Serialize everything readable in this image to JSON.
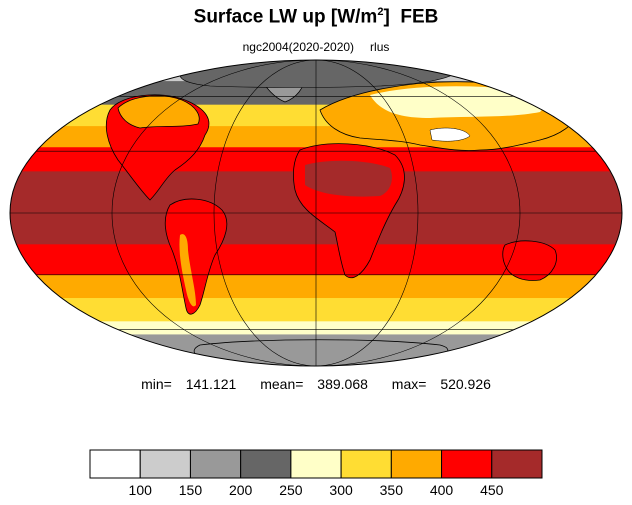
{
  "title": {
    "main": "Surface LW up [W/m",
    "superscript": "2",
    "close": "]",
    "month": "FEB"
  },
  "subtitle": {
    "case": "ngc2004(2020-2020)",
    "variable": "rlus"
  },
  "stats": {
    "min_label": "min=",
    "min_value": "141.121",
    "mean_label": "mean=",
    "mean_value": "389.068",
    "max_label": "max=",
    "max_value": "520.926"
  },
  "map": {
    "projection": "mollweide",
    "graticule": true,
    "coastlines": true,
    "field_bands": [
      {
        "lat_from": 90,
        "lat_to": 70,
        "class": 2
      },
      {
        "lat_from": 70,
        "lat_to": 55,
        "class": 4
      },
      {
        "lat_from": 55,
        "lat_to": 43,
        "class": 6
      },
      {
        "lat_from": 43,
        "lat_to": 32,
        "class": 7
      },
      {
        "lat_from": 32,
        "lat_to": 20,
        "class": 8
      },
      {
        "lat_from": 20,
        "lat_to": -15,
        "class": 9
      },
      {
        "lat_from": -15,
        "lat_to": -30,
        "class": 8
      },
      {
        "lat_from": -30,
        "lat_to": -42,
        "class": 7
      },
      {
        "lat_from": -42,
        "lat_to": -55,
        "class": 6
      },
      {
        "lat_from": -55,
        "lat_to": -63,
        "class": 5
      },
      {
        "lat_from": -63,
        "lat_to": -90,
        "class": 3
      }
    ]
  },
  "legend": {
    "colors": [
      "#ffffff",
      "#cccccc",
      "#999999",
      "#666666",
      "#ffffc8",
      "#ffdd33",
      "#ffaa00",
      "#ff0000",
      "#a52a2a"
    ],
    "ticks": [
      "100",
      "150",
      "200",
      "250",
      "300",
      "350",
      "400",
      "450"
    ],
    "units": "W/m2"
  }
}
